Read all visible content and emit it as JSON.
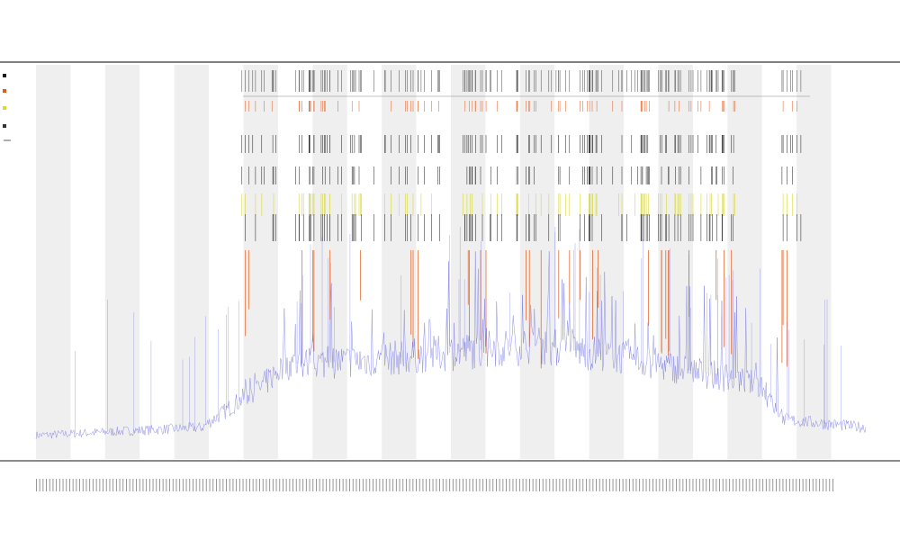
{
  "chart_data": {
    "type": "line",
    "title_lines": [
      "",
      "",
      ""
    ],
    "xlabel": "",
    "ylabel": "",
    "legend_placement": "top-left",
    "legend": [
      {
        "label": "",
        "color": "#1a1a1a"
      },
      {
        "label": "",
        "color": "#e05a1a"
      },
      {
        "label": "",
        "color": "#d8d83a"
      },
      {
        "label": "",
        "color": "#333333"
      }
    ],
    "track_labels": [
      "",
      ""
    ],
    "grid": false,
    "band_count": 12,
    "x_tick_count": 240,
    "intensity_series": {
      "name": "",
      "color": "#6a6ae0",
      "ylim": [
        0,
        100
      ],
      "anchors": [
        [
          0.0,
          6
        ],
        [
          0.2,
          8
        ],
        [
          0.24,
          14
        ],
        [
          0.27,
          18
        ],
        [
          0.3,
          24
        ],
        [
          0.4,
          25
        ],
        [
          0.5,
          27
        ],
        [
          0.6,
          29
        ],
        [
          0.7,
          26
        ],
        [
          0.8,
          22
        ],
        [
          0.87,
          19
        ],
        [
          0.9,
          10
        ],
        [
          1.0,
          8
        ]
      ]
    },
    "marker_series": [
      {
        "name": "",
        "color": "#e05a1a"
      },
      {
        "name": "",
        "color": "#d8d83a"
      },
      {
        "name": "",
        "color": "#1a1a1a"
      }
    ]
  }
}
